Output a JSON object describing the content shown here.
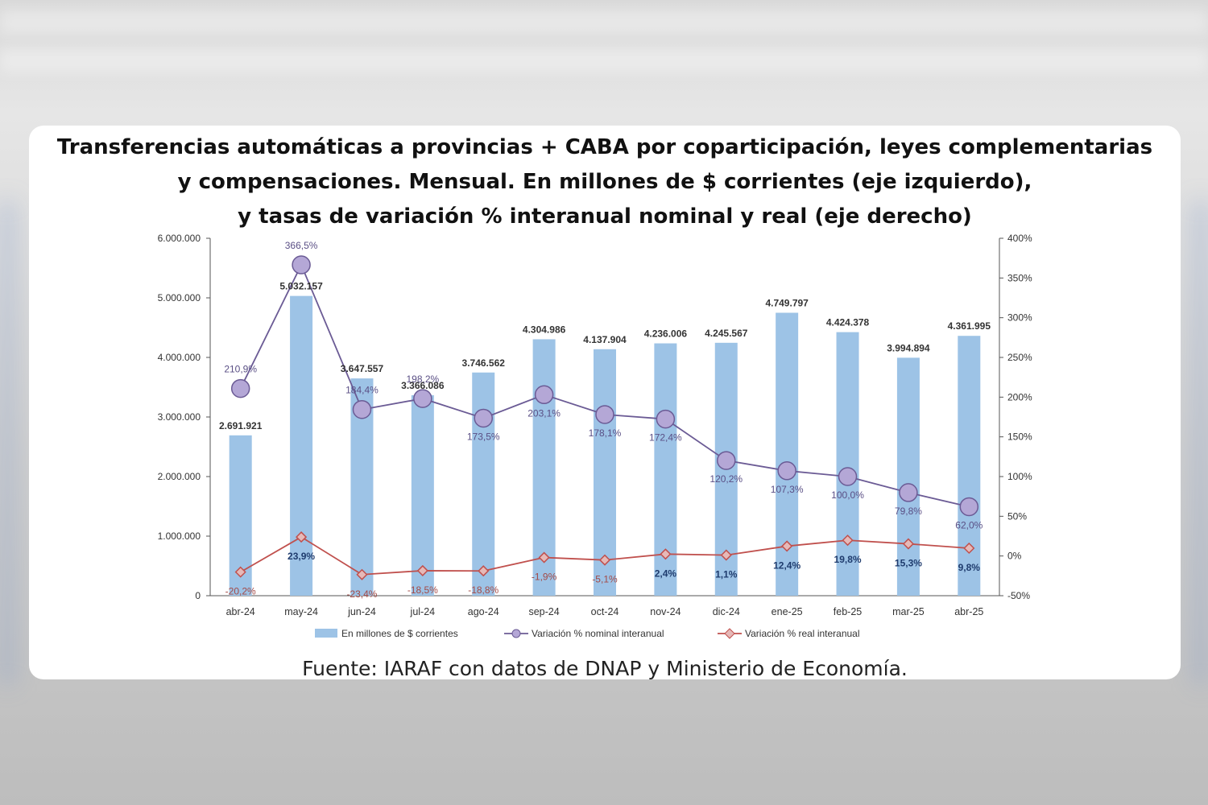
{
  "title_lines": [
    "Transferencias automáticas a provincias + CABA por coparticipación, leyes complementarias",
    "y compensaciones. Mensual. En millones de $ corrientes (eje izquierdo),",
    "y tasas de variación % interanual nominal y real (eje derecho)"
  ],
  "source": "Fuente: IARAF con datos de DNAP y Ministerio de Economía.",
  "colors": {
    "bar": "#9dc3e6",
    "nominal_line": "#6b5b95",
    "nominal_marker": "#b4a7d6",
    "real_line": "#c0504d",
    "real_marker": "#e6b9b8"
  },
  "chart_data": {
    "type": "bar",
    "categories": [
      "abr-24",
      "may-24",
      "jun-24",
      "jul-24",
      "ago-24",
      "sep-24",
      "oct-24",
      "nov-24",
      "dic-24",
      "ene-25",
      "feb-25",
      "mar-25",
      "abr-25"
    ],
    "left_axis": {
      "min": 0,
      "max": 6000000,
      "ticks": [
        "0",
        "1.000.000",
        "2.000.000",
        "3.000.000",
        "4.000.000",
        "5.000.000",
        "6.000.000"
      ],
      "tick_values": [
        0,
        1000000,
        2000000,
        3000000,
        4000000,
        5000000,
        6000000
      ]
    },
    "right_axis": {
      "min": -50,
      "max": 400,
      "ticks": [
        "-50%",
        "0%",
        "50%",
        "100%",
        "150%",
        "200%",
        "250%",
        "300%",
        "350%",
        "400%"
      ],
      "tick_values": [
        -50,
        0,
        50,
        100,
        150,
        200,
        250,
        300,
        350,
        400
      ]
    },
    "series": [
      {
        "name": "En millones de $ corrientes",
        "axis": "left",
        "kind": "bar",
        "values": [
          2691921,
          5032157,
          3647557,
          3366086,
          3746562,
          4304986,
          4137904,
          4236006,
          4245567,
          4749797,
          4424378,
          3994894,
          4361995
        ],
        "labels": [
          "2.691.921",
          "5.032.157",
          "3.647.557",
          "3.366.086",
          "3.746.562",
          "4.304.986",
          "4.137.904",
          "4.236.006",
          "4.245.567",
          "4.749.797",
          "4.424.378",
          "3.994.894",
          "4.361.995"
        ]
      },
      {
        "name": "Variación % nominal interanual",
        "axis": "right",
        "kind": "line",
        "values": [
          210.9,
          366.5,
          184.4,
          198.2,
          173.5,
          203.1,
          178.1,
          172.4,
          120.2,
          107.3,
          100.0,
          79.8,
          62.0
        ],
        "labels": [
          "210,9%",
          "366,5%",
          "184,4%",
          "198,2%",
          "173,5%",
          "203,1%",
          "178,1%",
          "172,4%",
          "120,2%",
          "107,3%",
          "100,0%",
          "79,8%",
          "62,0%"
        ]
      },
      {
        "name": "Variación % real interanual",
        "axis": "right",
        "kind": "line",
        "values": [
          -20.2,
          23.9,
          -23.4,
          -18.5,
          -18.8,
          -1.9,
          -5.1,
          2.4,
          1.1,
          12.4,
          19.8,
          15.3,
          9.8
        ],
        "labels": [
          "-20,2%",
          "23,9%",
          "-23,4%",
          "-18,5%",
          "-18,8%",
          "-1,9%",
          "-5,1%",
          "2,4%",
          "1,1%",
          "12,4%",
          "19,8%",
          "15,3%",
          "9,8%"
        ]
      }
    ],
    "legend_position": "bottom",
    "grid": false
  }
}
